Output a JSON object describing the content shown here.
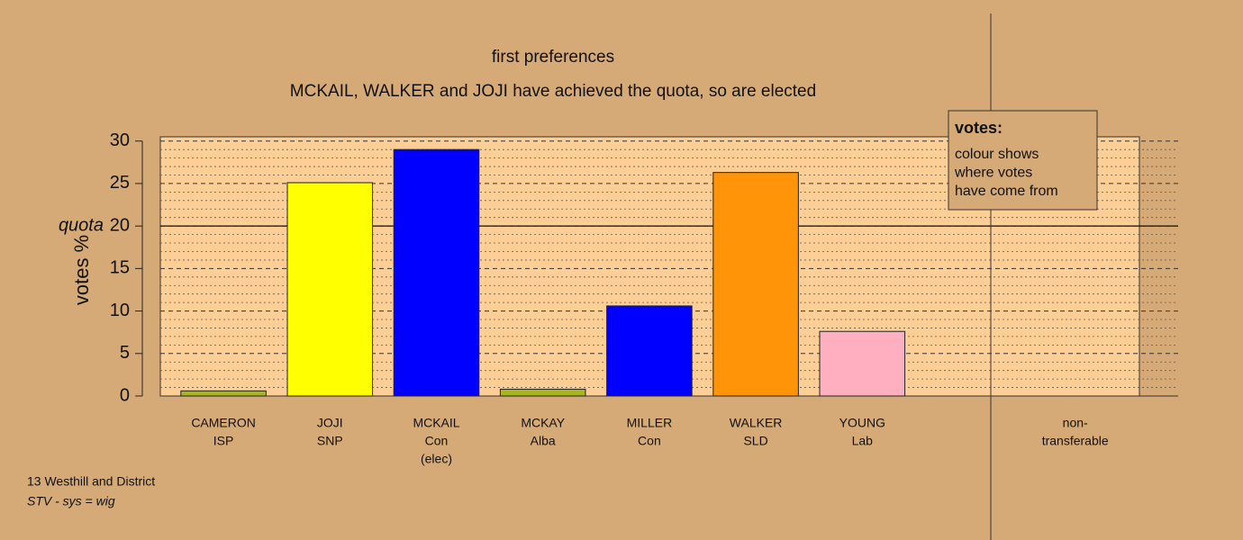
{
  "chart_data": {
    "type": "bar",
    "title": "first preferences",
    "subtitle": "MCKAIL, WALKER and JOJI have achieved the quota, so are elected",
    "y_label": "votes %",
    "categories": [
      [
        "CAMERON",
        "ISP"
      ],
      [
        "JOJI",
        "SNP"
      ],
      [
        "MCKAIL",
        "Con",
        "(elec)"
      ],
      [
        "MCKAY",
        "Alba"
      ],
      [
        "MILLER",
        "Con"
      ],
      [
        "WALKER",
        "SLD"
      ],
      [
        "YOUNG",
        "Lab"
      ],
      null,
      [
        "non-",
        "transferable"
      ]
    ],
    "values": [
      0.6,
      25.1,
      29.0,
      0.8,
      10.6,
      26.3,
      7.6,
      null,
      0
    ],
    "colors": [
      "#a8b51e",
      "#ffff00",
      "#0000ff",
      "#a8b51e",
      "#0000ff",
      "#ff9408",
      "#ffafc0",
      null,
      "#888888"
    ],
    "ylim": [
      0,
      30.5
    ],
    "yticks": [
      0,
      5,
      10,
      15,
      20,
      25,
      30
    ],
    "grid": true,
    "quota": {
      "value": 20,
      "label": "quota"
    },
    "legend": {
      "title": "votes:",
      "lines": [
        "colour shows",
        "where votes",
        "have come from"
      ]
    },
    "footnotes": [
      "13 Westhill and District",
      "STV - sys = wig"
    ]
  }
}
